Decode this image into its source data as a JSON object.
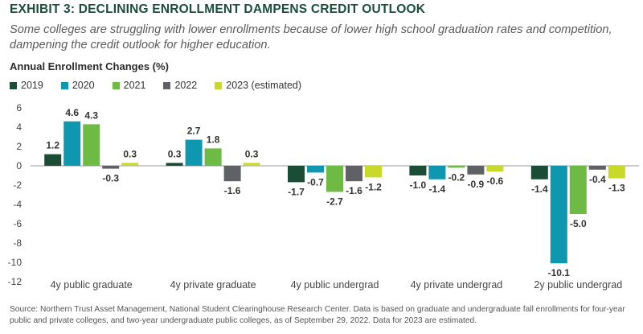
{
  "header": {
    "title": "EXHIBIT 3: DECLINING ENROLLMENT DAMPENS CREDIT OUTLOOK",
    "subtitle": "Some colleges are struggling with lower enrollments because of lower high school graduation rates and competition, dampening the credit outlook for higher education."
  },
  "footer": {
    "source": "Source: Northern Trust Asset Management, National Student Clearinghouse Research Center. Data is based on graduate and undergraduate fall enrollments for four-year public and private colleges, and two-year undergraduate public colleges, as of September 29, 2022. Data for 2023 are estimated."
  },
  "chart_data": {
    "type": "bar",
    "title": "",
    "xlabel": "",
    "ylabel": "Annual Enrollment Changes (%)",
    "ylim": [
      -12,
      6
    ],
    "yticks": [
      6,
      4,
      2,
      0,
      -2,
      -4,
      -6,
      -8,
      -10,
      -12
    ],
    "grid": false,
    "legend_position": "top-left",
    "categories": [
      "4y public graduate",
      "4y private graduate",
      "4y public undergrad",
      "4y private undergrad",
      "2y public undergrad"
    ],
    "series": [
      {
        "name": "2019",
        "color": "#1b4d36",
        "values": [
          1.2,
          0.3,
          -1.7,
          -1.0,
          -1.4
        ]
      },
      {
        "name": "2020",
        "color": "#0f97b0",
        "values": [
          4.6,
          2.7,
          -0.7,
          -1.4,
          -10.1
        ]
      },
      {
        "name": "2021",
        "color": "#6dbb45",
        "values": [
          4.3,
          1.8,
          -2.7,
          -0.2,
          -5.0
        ]
      },
      {
        "name": "2022",
        "color": "#5f6166",
        "values": [
          -0.3,
          -1.6,
          -1.6,
          -0.9,
          -0.4
        ]
      },
      {
        "name": "2023 (estimated)",
        "color": "#c9d92a",
        "values": [
          0.3,
          0.3,
          -1.2,
          -0.6,
          -1.3
        ]
      }
    ]
  }
}
